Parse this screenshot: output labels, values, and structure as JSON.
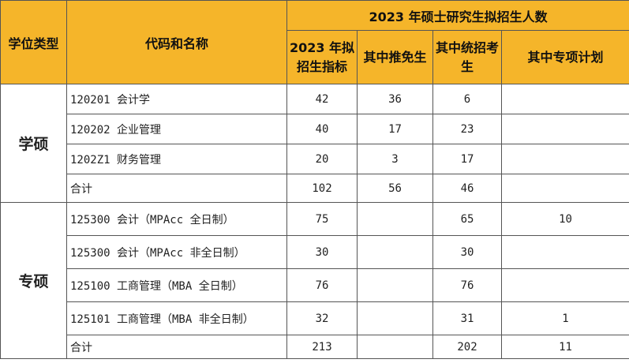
{
  "header": {
    "degree_type": "学位类型",
    "code_name": "代码和名称",
    "group_title": "2023 年硕士研究生拟招生人数",
    "col_quota": "2023 年拟招生指标",
    "col_exempt": "其中推免生",
    "col_exam": "其中统招考生",
    "col_special": "其中专项计划"
  },
  "groups": [
    {
      "label": "学硕",
      "rows": [
        {
          "code": "120201 会计学",
          "quota": "42",
          "exempt": "36",
          "exam": "6",
          "special": ""
        },
        {
          "code": "120202 企业管理",
          "quota": "40",
          "exempt": "17",
          "exam": "23",
          "special": ""
        },
        {
          "code": "1202Z1 财务管理",
          "quota": "20",
          "exempt": "3",
          "exam": "17",
          "special": ""
        },
        {
          "code": "合计",
          "quota": "102",
          "exempt": "56",
          "exam": "46",
          "special": ""
        }
      ]
    },
    {
      "label": "专硕",
      "rows": [
        {
          "code": "125300 会计（MPAcc 全日制）",
          "quota": "75",
          "exempt": "",
          "exam": "65",
          "special": "10"
        },
        {
          "code": "125300 会计（MPAcc 非全日制）",
          "quota": "30",
          "exempt": "",
          "exam": "30",
          "special": ""
        },
        {
          "code": "125100 工商管理（MBA 全日制）",
          "quota": "76",
          "exempt": "",
          "exam": "76",
          "special": ""
        },
        {
          "code": "125101 工商管理（MBA 非全日制）",
          "quota": "32",
          "exempt": "",
          "exam": "31",
          "special": "1"
        },
        {
          "code": "合计",
          "quota": "213",
          "exempt": "",
          "exam": "202",
          "special": "11"
        }
      ]
    }
  ]
}
